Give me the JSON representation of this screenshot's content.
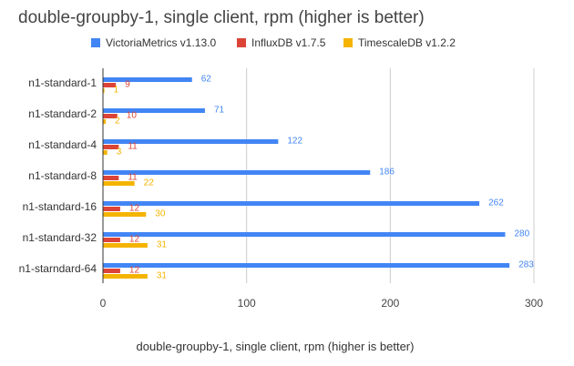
{
  "chart_data": {
    "type": "bar",
    "orientation": "horizontal",
    "title": "double-groupby-1, single client, rpm (higher is better)",
    "xlabel": "double-groupby-1, single client, rpm (higher is better)",
    "ylabel": "",
    "xlim": [
      0,
      300
    ],
    "xticks": [
      0,
      100,
      200,
      300
    ],
    "grid": true,
    "legend": "top",
    "categories": [
      "n1-standard-1",
      "n1-standard-2",
      "n1-standard-4",
      "n1-standard-8",
      "n1-standard-16",
      "n1-standard-32",
      "n1-starndard-64"
    ],
    "series": [
      {
        "name": "VictoriaMetrics v1.13.0",
        "color": "#4285f4",
        "values": [
          62,
          71,
          122,
          186,
          262,
          280,
          283
        ]
      },
      {
        "name": "InfluxDB v1.7.5",
        "color": "#db4437",
        "values": [
          9,
          10,
          11,
          11,
          12,
          12,
          12
        ]
      },
      {
        "name": "TimescaleDB v1.2.2",
        "color": "#f4b400",
        "values": [
          1,
          2,
          3,
          22,
          30,
          31,
          31
        ]
      }
    ]
  }
}
